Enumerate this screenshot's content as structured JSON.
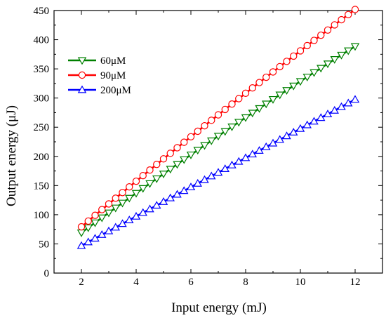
{
  "chart_data": {
    "type": "line",
    "title": "",
    "xlabel": "Input energy (mJ)",
    "ylabel": "Output energy (μJ)",
    "xlim": [
      1,
      13
    ],
    "ylim": [
      0,
      450
    ],
    "xticks": [
      2,
      4,
      6,
      8,
      10,
      12
    ],
    "yticks": [
      0,
      50,
      100,
      150,
      200,
      250,
      300,
      350,
      400,
      450
    ],
    "grid": false,
    "legend_position": "top-left",
    "x_range": [
      2,
      12
    ],
    "point_count": 41,
    "series": [
      {
        "name": "60μM",
        "color": "#008000",
        "marker": "triangle-down",
        "coef": [
          -0.4,
          35.3,
          -0.24
        ]
      },
      {
        "name": "90μM",
        "color": "#ff0000",
        "marker": "circle",
        "coef": [
          -0.6,
          40.4,
          -0.225
        ]
      },
      {
        "name": "200μM",
        "color": "#0000ff",
        "marker": "triangle-up",
        "coef": [
          -3.5,
          25.2,
          -0.01
        ]
      }
    ]
  }
}
